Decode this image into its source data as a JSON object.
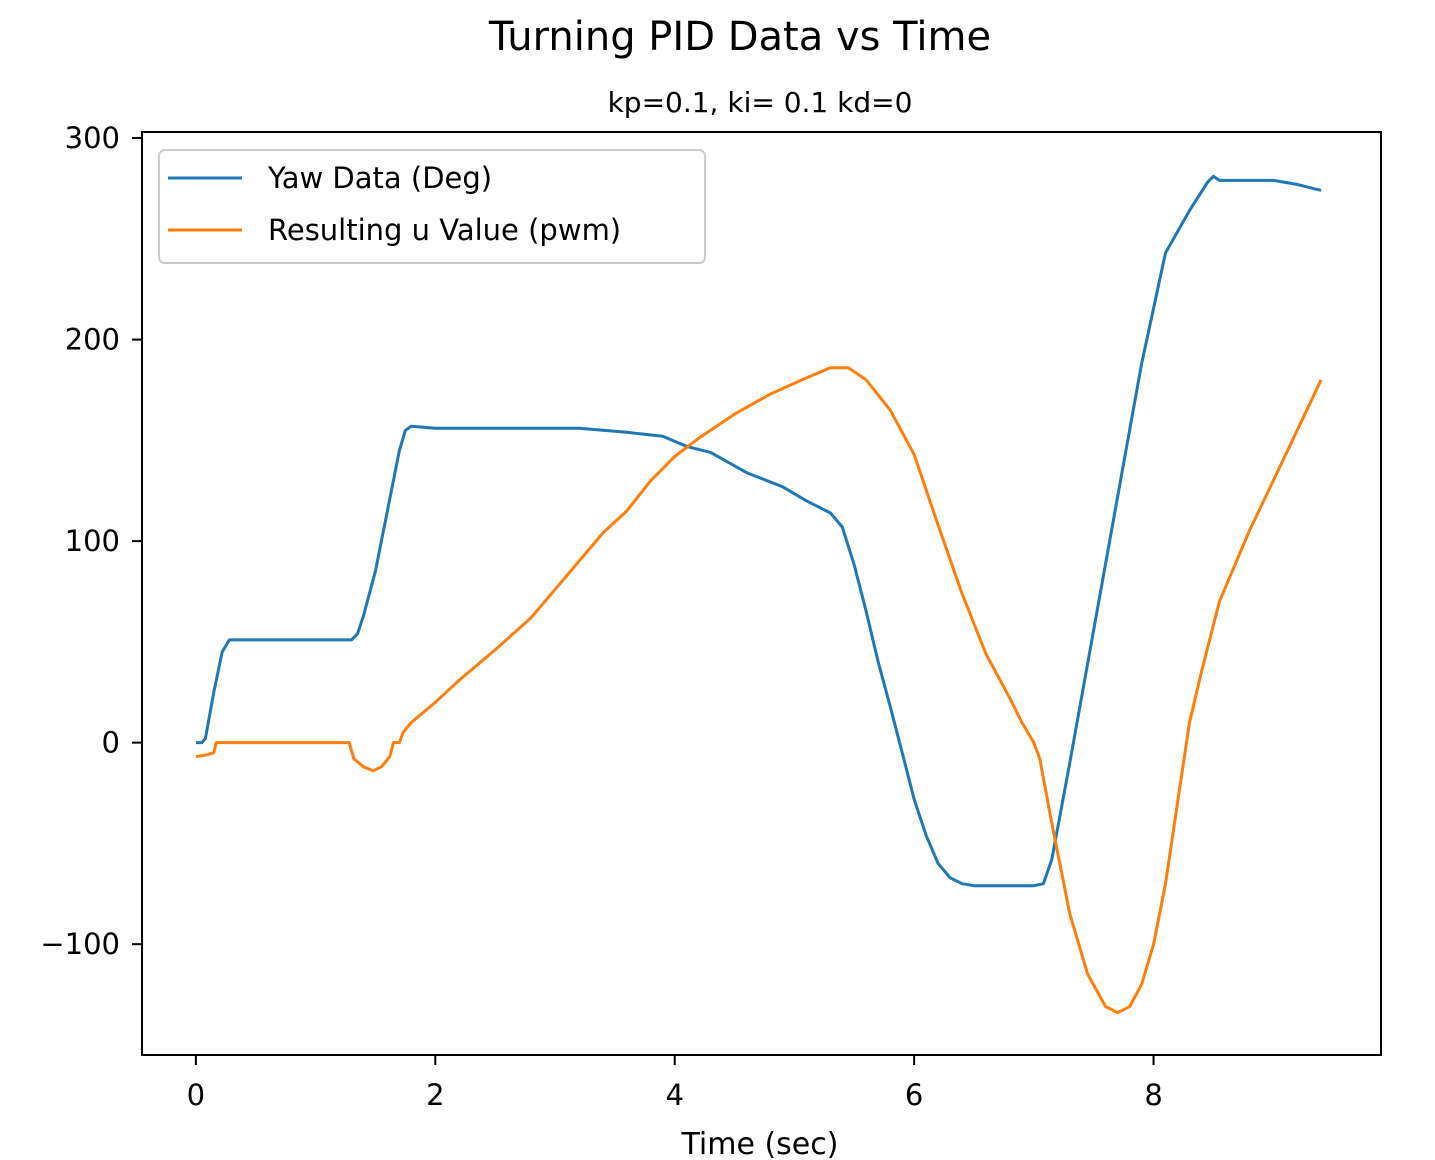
{
  "chart_data": {
    "type": "line",
    "title": "Turning PID Data vs Time",
    "subtitle": "kp=0.1, ki= 0.1 kd=0",
    "xlabel": "Time (sec)",
    "ylabel": "",
    "xlim": [
      -0.45,
      9.9
    ],
    "ylim": [
      -155,
      303
    ],
    "xticks": [
      0,
      2,
      4,
      6,
      8
    ],
    "xtick_labels": [
      "0",
      "2",
      "4",
      "6",
      "8"
    ],
    "yticks": [
      -100,
      0,
      100,
      200,
      300
    ],
    "ytick_labels": [
      "−100",
      "0",
      "100",
      "200",
      "300"
    ],
    "grid": false,
    "legend_position": "top-left",
    "series": [
      {
        "name": "Yaw Data (Deg)",
        "color": "#1f77b4",
        "points": [
          [
            0.0,
            0
          ],
          [
            0.05,
            0
          ],
          [
            0.08,
            2
          ],
          [
            0.15,
            25
          ],
          [
            0.22,
            45
          ],
          [
            0.28,
            51
          ],
          [
            0.4,
            51
          ],
          [
            0.8,
            51
          ],
          [
            1.0,
            51
          ],
          [
            1.3,
            51
          ],
          [
            1.35,
            54
          ],
          [
            1.4,
            63
          ],
          [
            1.5,
            85
          ],
          [
            1.6,
            115
          ],
          [
            1.7,
            145
          ],
          [
            1.75,
            155
          ],
          [
            1.8,
            157
          ],
          [
            2.0,
            156
          ],
          [
            2.5,
            156
          ],
          [
            3.0,
            156
          ],
          [
            3.2,
            156
          ],
          [
            3.6,
            154
          ],
          [
            3.9,
            152
          ],
          [
            4.1,
            147
          ],
          [
            4.3,
            144
          ],
          [
            4.6,
            134
          ],
          [
            4.9,
            127
          ],
          [
            5.1,
            120
          ],
          [
            5.3,
            114
          ],
          [
            5.4,
            107
          ],
          [
            5.5,
            88
          ],
          [
            5.6,
            65
          ],
          [
            5.7,
            40
          ],
          [
            5.8,
            18
          ],
          [
            5.9,
            -5
          ],
          [
            6.0,
            -28
          ],
          [
            6.1,
            -46
          ],
          [
            6.2,
            -60
          ],
          [
            6.3,
            -67
          ],
          [
            6.4,
            -70
          ],
          [
            6.5,
            -71
          ],
          [
            6.8,
            -71
          ],
          [
            7.0,
            -71
          ],
          [
            7.08,
            -70
          ],
          [
            7.15,
            -58
          ],
          [
            7.3,
            -10
          ],
          [
            7.5,
            56
          ],
          [
            7.7,
            122
          ],
          [
            7.9,
            188
          ],
          [
            8.1,
            243
          ],
          [
            8.3,
            264
          ],
          [
            8.45,
            278
          ],
          [
            8.5,
            281
          ],
          [
            8.55,
            279
          ],
          [
            8.7,
            279
          ],
          [
            9.0,
            279
          ],
          [
            9.2,
            277
          ],
          [
            9.4,
            274
          ]
        ]
      },
      {
        "name": "Resulting u Value (pwm)",
        "color": "#ff7f0e",
        "points": [
          [
            0.0,
            -7
          ],
          [
            0.1,
            -6
          ],
          [
            0.15,
            -5
          ],
          [
            0.17,
            0
          ],
          [
            0.3,
            0
          ],
          [
            0.8,
            0
          ],
          [
            1.28,
            0
          ],
          [
            1.32,
            -8
          ],
          [
            1.4,
            -12
          ],
          [
            1.48,
            -14
          ],
          [
            1.55,
            -12
          ],
          [
            1.62,
            -7
          ],
          [
            1.65,
            0
          ],
          [
            1.7,
            0
          ],
          [
            1.73,
            5
          ],
          [
            1.8,
            10
          ],
          [
            2.0,
            20
          ],
          [
            2.2,
            31
          ],
          [
            2.5,
            46
          ],
          [
            2.8,
            62
          ],
          [
            3.1,
            83
          ],
          [
            3.4,
            104
          ],
          [
            3.6,
            115
          ],
          [
            3.8,
            130
          ],
          [
            4.0,
            142
          ],
          [
            4.2,
            151
          ],
          [
            4.5,
            163
          ],
          [
            4.8,
            173
          ],
          [
            5.1,
            181
          ],
          [
            5.3,
            186
          ],
          [
            5.45,
            186
          ],
          [
            5.6,
            180
          ],
          [
            5.8,
            165
          ],
          [
            6.0,
            143
          ],
          [
            6.2,
            108
          ],
          [
            6.4,
            74
          ],
          [
            6.6,
            44
          ],
          [
            6.8,
            22
          ],
          [
            6.9,
            10
          ],
          [
            7.0,
            0
          ],
          [
            7.05,
            -8
          ],
          [
            7.15,
            -40
          ],
          [
            7.3,
            -85
          ],
          [
            7.45,
            -115
          ],
          [
            7.6,
            -131
          ],
          [
            7.7,
            -134
          ],
          [
            7.8,
            -131
          ],
          [
            7.9,
            -120
          ],
          [
            8.0,
            -100
          ],
          [
            8.1,
            -70
          ],
          [
            8.2,
            -30
          ],
          [
            8.3,
            10
          ],
          [
            8.4,
            35
          ],
          [
            8.55,
            70
          ],
          [
            8.8,
            105
          ],
          [
            9.0,
            130
          ],
          [
            9.2,
            155
          ],
          [
            9.4,
            180
          ]
        ]
      }
    ]
  }
}
